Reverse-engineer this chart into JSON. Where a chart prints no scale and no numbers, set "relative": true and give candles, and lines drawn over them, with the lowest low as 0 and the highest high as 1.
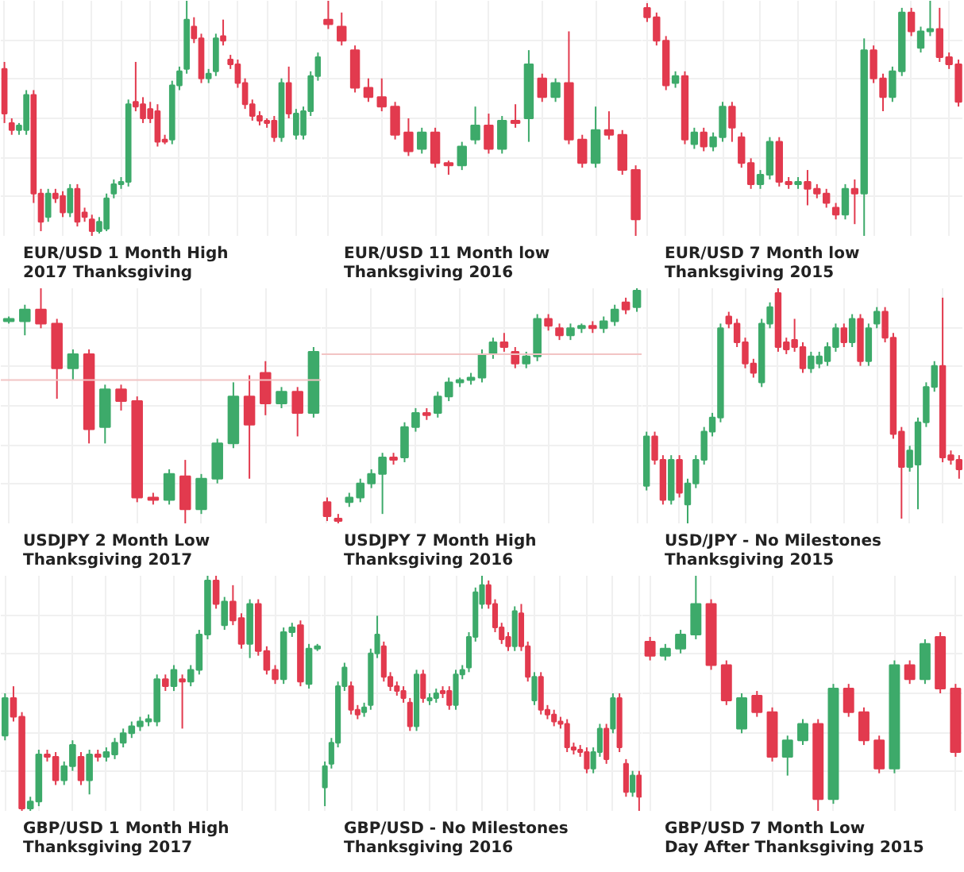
{
  "chart_data": [
    {
      "type": "candlestick",
      "relative": true,
      "grid": true,
      "annotations": [
        "EUR/USD 1 Month High\n2017 Thanksgiving"
      ],
      "categories": [
        null,
        null,
        null,
        null,
        null,
        null,
        null,
        null,
        null,
        null,
        null,
        null,
        null,
        null,
        null,
        null,
        null,
        null,
        null,
        null,
        null,
        null,
        null,
        null,
        null,
        null,
        null,
        null,
        null,
        null,
        null,
        null,
        null,
        null,
        null,
        null,
        null,
        null,
        null,
        null,
        null,
        null,
        null,
        null
      ],
      "ohlc": [
        [
          0.71,
          0.74,
          0.48,
          0.52
        ],
        [
          0.48,
          0.5,
          0.43,
          0.45
        ],
        [
          0.45,
          0.48,
          0.43,
          0.47
        ],
        [
          0.45,
          0.62,
          0.43,
          0.6
        ],
        [
          0.6,
          0.62,
          0.14,
          0.18
        ],
        [
          0.18,
          0.2,
          0.02,
          0.06
        ],
        [
          0.08,
          0.2,
          0.06,
          0.18
        ],
        [
          0.18,
          0.2,
          0.14,
          0.16
        ],
        [
          0.17,
          0.19,
          0.08,
          0.1
        ],
        [
          0.1,
          0.22,
          0.08,
          0.2
        ],
        [
          0.2,
          0.22,
          0.04,
          0.06
        ],
        [
          0.1,
          0.12,
          0.06,
          0.08
        ],
        [
          0.07,
          0.09,
          0.0,
          0.02
        ],
        [
          0.02,
          0.08,
          0.01,
          0.06
        ],
        [
          0.03,
          0.18,
          0.02,
          0.16
        ],
        [
          0.18,
          0.24,
          0.16,
          0.22
        ],
        [
          0.22,
          0.25,
          0.2,
          0.23
        ],
        [
          0.23,
          0.58,
          0.21,
          0.56
        ],
        [
          0.57,
          0.74,
          0.53,
          0.55
        ],
        [
          0.56,
          0.59,
          0.48,
          0.5
        ],
        [
          0.54,
          0.57,
          0.48,
          0.5
        ],
        [
          0.53,
          0.56,
          0.38,
          0.4
        ],
        [
          0.41,
          0.43,
          0.39,
          0.4
        ],
        [
          0.41,
          0.66,
          0.39,
          0.64
        ],
        [
          0.64,
          0.72,
          0.62,
          0.7
        ],
        [
          0.71,
          1.0,
          0.69,
          0.92
        ],
        [
          0.89,
          0.93,
          0.82,
          0.84
        ],
        [
          0.84,
          0.86,
          0.65,
          0.67
        ],
        [
          0.67,
          0.71,
          0.65,
          0.69
        ],
        [
          0.7,
          0.86,
          0.68,
          0.84
        ],
        [
          0.85,
          0.92,
          0.81,
          0.83
        ],
        [
          0.75,
          0.77,
          0.71,
          0.73
        ],
        [
          0.73,
          0.75,
          0.63,
          0.65
        ],
        [
          0.65,
          0.67,
          0.54,
          0.56
        ],
        [
          0.56,
          0.58,
          0.49,
          0.51
        ],
        [
          0.51,
          0.53,
          0.47,
          0.49
        ],
        [
          0.49,
          0.5,
          0.46,
          0.48
        ],
        [
          0.49,
          0.51,
          0.4,
          0.42
        ],
        [
          0.42,
          0.67,
          0.4,
          0.65
        ],
        [
          0.65,
          0.72,
          0.5,
          0.52
        ],
        [
          0.43,
          0.54,
          0.41,
          0.52
        ],
        [
          0.43,
          0.55,
          0.41,
          0.53
        ],
        [
          0.53,
          0.7,
          0.51,
          0.68
        ],
        [
          0.68,
          0.78,
          0.66,
          0.76
        ]
      ]
    },
    {
      "type": "candlestick",
      "relative": true,
      "grid": true,
      "annotations": [
        "EUR/USD 11 Month low\nThanksgiving 2016"
      ],
      "categories": [
        null,
        null,
        null,
        null,
        null,
        null,
        null,
        null,
        null,
        null,
        null,
        null,
        null,
        null,
        null,
        null,
        null,
        null,
        null,
        null,
        null,
        null,
        null,
        null
      ],
      "ohlc": [
        [
          0.92,
          1.0,
          0.88,
          0.9
        ],
        [
          0.89,
          0.95,
          0.81,
          0.83
        ],
        [
          0.79,
          0.81,
          0.61,
          0.63
        ],
        [
          0.63,
          0.67,
          0.57,
          0.59
        ],
        [
          0.59,
          0.67,
          0.53,
          0.55
        ],
        [
          0.55,
          0.57,
          0.41,
          0.43
        ],
        [
          0.44,
          0.5,
          0.34,
          0.36
        ],
        [
          0.37,
          0.46,
          0.35,
          0.44
        ],
        [
          0.44,
          0.46,
          0.29,
          0.31
        ],
        [
          0.31,
          0.32,
          0.26,
          0.3
        ],
        [
          0.3,
          0.4,
          0.28,
          0.38
        ],
        [
          0.41,
          0.55,
          0.39,
          0.47
        ],
        [
          0.47,
          0.52,
          0.35,
          0.37
        ],
        [
          0.37,
          0.51,
          0.35,
          0.49
        ],
        [
          0.49,
          0.56,
          0.46,
          0.48
        ],
        [
          0.5,
          0.79,
          0.4,
          0.73
        ],
        [
          0.67,
          0.69,
          0.57,
          0.59
        ],
        [
          0.59,
          0.67,
          0.57,
          0.65
        ],
        [
          0.65,
          0.87,
          0.39,
          0.41
        ],
        [
          0.41,
          0.43,
          0.29,
          0.31
        ],
        [
          0.31,
          0.55,
          0.29,
          0.45
        ],
        [
          0.45,
          0.53,
          0.41,
          0.43
        ],
        [
          0.43,
          0.45,
          0.26,
          0.28
        ],
        [
          0.28,
          0.3,
          0.0,
          0.07
        ]
      ]
    },
    {
      "type": "candlestick",
      "relative": true,
      "grid": true,
      "annotations": [
        "EUR/USD 7 Month low\nThanksgiving 2015"
      ],
      "categories": [
        null,
        null,
        null,
        null,
        null,
        null,
        null,
        null,
        null,
        null,
        null,
        null,
        null,
        null,
        null,
        null,
        null,
        null,
        null,
        null,
        null,
        null,
        null,
        null,
        null,
        null,
        null,
        null,
        null,
        null,
        null,
        null,
        null,
        null
      ],
      "ohlc": [
        [
          0.97,
          0.99,
          0.91,
          0.93
        ],
        [
          0.93,
          0.95,
          0.81,
          0.83
        ],
        [
          0.83,
          0.85,
          0.62,
          0.64
        ],
        [
          0.65,
          0.7,
          0.63,
          0.68
        ],
        [
          0.68,
          0.7,
          0.39,
          0.41
        ],
        [
          0.39,
          0.46,
          0.37,
          0.44
        ],
        [
          0.44,
          0.46,
          0.36,
          0.38
        ],
        [
          0.38,
          0.44,
          0.36,
          0.42
        ],
        [
          0.42,
          0.57,
          0.4,
          0.55
        ],
        [
          0.55,
          0.57,
          0.4,
          0.46
        ],
        [
          0.42,
          0.44,
          0.29,
          0.31
        ],
        [
          0.31,
          0.33,
          0.2,
          0.22
        ],
        [
          0.22,
          0.28,
          0.2,
          0.26
        ],
        [
          0.26,
          0.42,
          0.24,
          0.4
        ],
        [
          0.4,
          0.42,
          0.21,
          0.23
        ],
        [
          0.23,
          0.25,
          0.2,
          0.22
        ],
        [
          0.22,
          0.25,
          0.2,
          0.23
        ],
        [
          0.23,
          0.28,
          0.13,
          0.2
        ],
        [
          0.2,
          0.22,
          0.16,
          0.18
        ],
        [
          0.18,
          0.2,
          0.12,
          0.14
        ],
        [
          0.12,
          0.14,
          0.07,
          0.09
        ],
        [
          0.09,
          0.22,
          0.07,
          0.2
        ],
        [
          0.2,
          0.24,
          0.05,
          0.18
        ],
        [
          0.18,
          0.84,
          0.0,
          0.79
        ],
        [
          0.79,
          0.81,
          0.65,
          0.67
        ],
        [
          0.67,
          0.69,
          0.53,
          0.59
        ],
        [
          0.59,
          0.72,
          0.57,
          0.7
        ],
        [
          0.7,
          0.97,
          0.68,
          0.95
        ],
        [
          0.95,
          0.97,
          0.85,
          0.87
        ],
        [
          0.8,
          0.89,
          0.78,
          0.87
        ],
        [
          0.87,
          1.0,
          0.85,
          0.88
        ],
        [
          0.88,
          0.97,
          0.74,
          0.76
        ],
        [
          0.76,
          0.78,
          0.71,
          0.73
        ],
        [
          0.73,
          0.75,
          0.55,
          0.57
        ]
      ]
    },
    {
      "type": "candlestick",
      "relative": true,
      "grid": true,
      "annotations": [
        "USDJPY 2 Month Low\nThanksgiving 2017"
      ],
      "ref_lines": [
        {
          "axis": "y",
          "value": 0.61,
          "color": "#f2c4c4"
        }
      ],
      "categories": [
        null,
        null,
        null,
        null,
        null,
        null,
        null,
        null,
        null,
        null,
        null,
        null,
        null,
        null,
        null,
        null,
        null,
        null,
        null,
        null
      ],
      "ohlc": [
        [
          0.86,
          0.88,
          0.85,
          0.87
        ],
        [
          0.86,
          0.93,
          0.8,
          0.91
        ],
        [
          0.91,
          1.0,
          0.83,
          0.85
        ],
        [
          0.85,
          0.87,
          0.53,
          0.66
        ],
        [
          0.66,
          0.74,
          0.61,
          0.72
        ],
        [
          0.72,
          0.74,
          0.34,
          0.4
        ],
        [
          0.41,
          0.59,
          0.34,
          0.57
        ],
        [
          0.57,
          0.59,
          0.48,
          0.52
        ],
        [
          0.52,
          0.54,
          0.09,
          0.11
        ],
        [
          0.11,
          0.13,
          0.08,
          0.1
        ],
        [
          0.1,
          0.23,
          0.08,
          0.21
        ],
        [
          0.2,
          0.27,
          0.0,
          0.06
        ],
        [
          0.06,
          0.21,
          0.04,
          0.19
        ],
        [
          0.19,
          0.36,
          0.17,
          0.34
        ],
        [
          0.34,
          0.6,
          0.32,
          0.54
        ],
        [
          0.54,
          0.63,
          0.19,
          0.42
        ],
        [
          0.64,
          0.69,
          0.46,
          0.51
        ],
        [
          0.51,
          0.58,
          0.49,
          0.56
        ],
        [
          0.56,
          0.58,
          0.37,
          0.47
        ],
        [
          0.47,
          0.75,
          0.45,
          0.73
        ]
      ]
    },
    {
      "type": "candlestick",
      "relative": true,
      "grid": true,
      "annotations": [
        "USDJPY 7 Month High\nThanksgiving 2016"
      ],
      "ref_lines": [
        {
          "axis": "y",
          "value": 0.72,
          "color": "#f2c4c4"
        }
      ],
      "categories": [
        null,
        null,
        null,
        null,
        null,
        null,
        null,
        null,
        null,
        null,
        null,
        null,
        null,
        null,
        null,
        null,
        null,
        null,
        null,
        null,
        null,
        null,
        null,
        null,
        null,
        null,
        null,
        null,
        null
      ],
      "ohlc": [
        [
          0.09,
          0.11,
          0.01,
          0.03
        ],
        [
          0.02,
          0.04,
          0.0,
          0.01
        ],
        [
          0.09,
          0.13,
          0.07,
          0.11
        ],
        [
          0.11,
          0.19,
          0.09,
          0.17
        ],
        [
          0.17,
          0.23,
          0.15,
          0.21
        ],
        [
          0.21,
          0.3,
          0.04,
          0.28
        ],
        [
          0.28,
          0.3,
          0.25,
          0.27
        ],
        [
          0.28,
          0.43,
          0.26,
          0.41
        ],
        [
          0.41,
          0.49,
          0.39,
          0.47
        ],
        [
          0.47,
          0.49,
          0.44,
          0.46
        ],
        [
          0.47,
          0.56,
          0.45,
          0.54
        ],
        [
          0.54,
          0.62,
          0.52,
          0.6
        ],
        [
          0.6,
          0.62,
          0.58,
          0.61
        ],
        [
          0.61,
          0.64,
          0.59,
          0.62
        ],
        [
          0.62,
          0.74,
          0.6,
          0.72
        ],
        [
          0.72,
          0.79,
          0.7,
          0.77
        ],
        [
          0.77,
          0.81,
          0.73,
          0.75
        ],
        [
          0.73,
          0.75,
          0.66,
          0.68
        ],
        [
          0.68,
          0.73,
          0.66,
          0.71
        ],
        [
          0.71,
          0.89,
          0.69,
          0.87
        ],
        [
          0.87,
          0.89,
          0.82,
          0.84
        ],
        [
          0.83,
          0.85,
          0.78,
          0.8
        ],
        [
          0.8,
          0.85,
          0.78,
          0.83
        ],
        [
          0.83,
          0.85,
          0.81,
          0.84
        ],
        [
          0.84,
          0.86,
          0.81,
          0.83
        ],
        [
          0.83,
          0.88,
          0.81,
          0.86
        ],
        [
          0.86,
          0.93,
          0.84,
          0.91
        ],
        [
          0.94,
          0.96,
          0.89,
          0.91
        ],
        [
          0.92,
          1.0,
          0.9,
          0.99
        ]
      ]
    },
    {
      "type": "candlestick",
      "relative": true,
      "grid": true,
      "annotations": [
        "USD/JPY - No Milestones\nThanksgiving 2015"
      ],
      "categories": [
        null,
        null,
        null,
        null,
        null,
        null,
        null,
        null,
        null,
        null,
        null,
        null,
        null,
        null,
        null,
        null,
        null,
        null,
        null,
        null,
        null,
        null,
        null,
        null,
        null,
        null,
        null,
        null,
        null,
        null,
        null,
        null,
        null,
        null,
        null,
        null,
        null,
        null,
        null
      ],
      "ohlc": [
        [
          0.16,
          0.39,
          0.14,
          0.37
        ],
        [
          0.37,
          0.39,
          0.25,
          0.27
        ],
        [
          0.27,
          0.29,
          0.08,
          0.1
        ],
        [
          0.1,
          0.29,
          0.08,
          0.27
        ],
        [
          0.27,
          0.29,
          0.11,
          0.13
        ],
        [
          0.08,
          0.19,
          0.0,
          0.17
        ],
        [
          0.17,
          0.29,
          0.15,
          0.27
        ],
        [
          0.27,
          0.41,
          0.25,
          0.39
        ],
        [
          0.39,
          0.47,
          0.37,
          0.45
        ],
        [
          0.45,
          0.85,
          0.43,
          0.83
        ],
        [
          0.88,
          0.9,
          0.83,
          0.85
        ],
        [
          0.85,
          0.87,
          0.75,
          0.77
        ],
        [
          0.77,
          0.79,
          0.66,
          0.68
        ],
        [
          0.68,
          0.7,
          0.62,
          0.64
        ],
        [
          0.6,
          0.87,
          0.58,
          0.85
        ],
        [
          0.85,
          0.94,
          0.83,
          0.92
        ],
        [
          0.98,
          1.0,
          0.73,
          0.75
        ],
        [
          0.77,
          0.79,
          0.72,
          0.74
        ],
        [
          0.78,
          0.87,
          0.73,
          0.75
        ],
        [
          0.75,
          0.77,
          0.64,
          0.66
        ],
        [
          0.66,
          0.73,
          0.64,
          0.71
        ],
        [
          0.68,
          0.73,
          0.66,
          0.71
        ],
        [
          0.69,
          0.77,
          0.67,
          0.75
        ],
        [
          0.75,
          0.85,
          0.73,
          0.83
        ],
        [
          0.83,
          0.85,
          0.75,
          0.77
        ],
        [
          0.77,
          0.89,
          0.75,
          0.87
        ],
        [
          0.87,
          0.89,
          0.67,
          0.69
        ],
        [
          0.69,
          0.85,
          0.67,
          0.83
        ],
        [
          0.85,
          0.92,
          0.83,
          0.9
        ],
        [
          0.9,
          0.92,
          0.77,
          0.79
        ],
        [
          0.79,
          0.81,
          0.36,
          0.38
        ],
        [
          0.39,
          0.41,
          0.02,
          0.24
        ],
        [
          0.24,
          0.33,
          0.22,
          0.31
        ],
        [
          0.25,
          0.45,
          0.06,
          0.43
        ],
        [
          0.43,
          0.6,
          0.41,
          0.58
        ],
        [
          0.58,
          0.69,
          0.56,
          0.67
        ],
        [
          0.67,
          0.96,
          0.26,
          0.28
        ],
        [
          0.29,
          0.31,
          0.25,
          0.27
        ],
        [
          0.27,
          0.29,
          0.19,
          0.23
        ]
      ]
    },
    {
      "type": "candlestick",
      "relative": true,
      "grid": true,
      "annotations": [
        "GBP/USD 1 Month High\nThanksgiving 2017"
      ],
      "categories": [
        null,
        null,
        null,
        null,
        null,
        null,
        null,
        null,
        null,
        null,
        null,
        null,
        null,
        null,
        null,
        null,
        null,
        null,
        null,
        null,
        null,
        null,
        null,
        null,
        null,
        null,
        null,
        null,
        null,
        null,
        null,
        null,
        null,
        null,
        null,
        null,
        null,
        null
      ],
      "ohlc": [
        [
          0.32,
          0.5,
          0.3,
          0.48
        ],
        [
          0.48,
          0.53,
          0.38,
          0.4
        ],
        [
          0.4,
          0.42,
          0.0,
          0.01
        ],
        [
          0.01,
          0.06,
          0.0,
          0.04
        ],
        [
          0.04,
          0.26,
          0.02,
          0.24
        ],
        [
          0.24,
          0.26,
          0.21,
          0.23
        ],
        [
          0.23,
          0.25,
          0.11,
          0.13
        ],
        [
          0.13,
          0.21,
          0.11,
          0.19
        ],
        [
          0.19,
          0.3,
          0.17,
          0.28
        ],
        [
          0.23,
          0.25,
          0.11,
          0.13
        ],
        [
          0.13,
          0.26,
          0.07,
          0.24
        ],
        [
          0.24,
          0.26,
          0.21,
          0.23
        ],
        [
          0.23,
          0.27,
          0.21,
          0.25
        ],
        [
          0.24,
          0.31,
          0.22,
          0.29
        ],
        [
          0.29,
          0.35,
          0.27,
          0.33
        ],
        [
          0.33,
          0.38,
          0.31,
          0.36
        ],
        [
          0.36,
          0.4,
          0.34,
          0.38
        ],
        [
          0.38,
          0.41,
          0.36,
          0.39
        ],
        [
          0.38,
          0.58,
          0.36,
          0.56
        ],
        [
          0.56,
          0.58,
          0.51,
          0.53
        ],
        [
          0.53,
          0.62,
          0.51,
          0.6
        ],
        [
          0.56,
          0.58,
          0.35,
          0.55
        ],
        [
          0.55,
          0.62,
          0.53,
          0.6
        ],
        [
          0.6,
          0.77,
          0.58,
          0.75
        ],
        [
          0.75,
          1.0,
          0.73,
          0.98
        ],
        [
          0.98,
          1.0,
          0.86,
          0.88
        ],
        [
          0.79,
          0.91,
          0.77,
          0.89
        ],
        [
          0.89,
          0.96,
          0.79,
          0.81
        ],
        [
          0.82,
          0.84,
          0.69,
          0.71
        ],
        [
          0.71,
          0.9,
          0.65,
          0.88
        ],
        [
          0.88,
          0.9,
          0.66,
          0.68
        ],
        [
          0.68,
          0.7,
          0.58,
          0.6
        ],
        [
          0.6,
          0.62,
          0.54,
          0.56
        ],
        [
          0.56,
          0.78,
          0.54,
          0.76
        ],
        [
          0.76,
          0.8,
          0.74,
          0.78
        ],
        [
          0.79,
          0.81,
          0.53,
          0.55
        ],
        [
          0.54,
          0.71,
          0.52,
          0.69
        ],
        [
          0.69,
          0.71,
          0.68,
          0.7
        ]
      ]
    },
    {
      "type": "candlestick",
      "relative": true,
      "grid": true,
      "annotations": [
        "GBP/USD - No Milestones\nThanksgiving 2016"
      ],
      "categories": [
        null,
        null,
        null,
        null,
        null,
        null,
        null,
        null,
        null,
        null,
        null,
        null,
        null,
        null,
        null,
        null,
        null,
        null,
        null,
        null,
        null,
        null,
        null,
        null,
        null,
        null,
        null,
        null,
        null,
        null,
        null,
        null,
        null,
        null,
        null,
        null,
        null,
        null,
        null,
        null,
        null,
        null,
        null,
        null,
        null,
        null,
        null,
        null,
        null
      ],
      "ohlc": [
        [
          0.1,
          0.21,
          0.02,
          0.19
        ],
        [
          0.2,
          0.31,
          0.18,
          0.29
        ],
        [
          0.29,
          0.55,
          0.27,
          0.53
        ],
        [
          0.53,
          0.63,
          0.51,
          0.61
        ],
        [
          0.53,
          0.55,
          0.41,
          0.43
        ],
        [
          0.43,
          0.45,
          0.39,
          0.41
        ],
        [
          0.42,
          0.46,
          0.4,
          0.44
        ],
        [
          0.45,
          0.69,
          0.43,
          0.67
        ],
        [
          0.67,
          0.83,
          0.65,
          0.75
        ],
        [
          0.7,
          0.72,
          0.55,
          0.57
        ],
        [
          0.57,
          0.59,
          0.51,
          0.53
        ],
        [
          0.53,
          0.55,
          0.49,
          0.51
        ],
        [
          0.51,
          0.53,
          0.46,
          0.48
        ],
        [
          0.46,
          0.48,
          0.34,
          0.36
        ],
        [
          0.36,
          0.6,
          0.34,
          0.58
        ],
        [
          0.58,
          0.6,
          0.46,
          0.48
        ],
        [
          0.47,
          0.5,
          0.45,
          0.48
        ],
        [
          0.48,
          0.52,
          0.46,
          0.5
        ],
        [
          0.51,
          0.53,
          0.48,
          0.5
        ],
        [
          0.51,
          0.53,
          0.43,
          0.45
        ],
        [
          0.45,
          0.6,
          0.43,
          0.58
        ],
        [
          0.58,
          0.62,
          0.56,
          0.6
        ],
        [
          0.61,
          0.76,
          0.59,
          0.74
        ],
        [
          0.74,
          0.95,
          0.72,
          0.93
        ],
        [
          0.88,
          1.0,
          0.86,
          0.96
        ],
        [
          0.96,
          0.98,
          0.86,
          0.88
        ],
        [
          0.88,
          0.9,
          0.76,
          0.78
        ],
        [
          0.78,
          0.8,
          0.71,
          0.73
        ],
        [
          0.74,
          0.76,
          0.68,
          0.7
        ],
        [
          0.7,
          0.87,
          0.68,
          0.85
        ],
        [
          0.84,
          0.88,
          0.68,
          0.7
        ],
        [
          0.7,
          0.72,
          0.55,
          0.57
        ],
        [
          0.47,
          0.59,
          0.45,
          0.57
        ],
        [
          0.57,
          0.59,
          0.41,
          0.43
        ],
        [
          0.43,
          0.45,
          0.39,
          0.41
        ],
        [
          0.41,
          0.43,
          0.36,
          0.38
        ],
        [
          0.38,
          0.4,
          0.35,
          0.37
        ],
        [
          0.37,
          0.39,
          0.25,
          0.27
        ],
        [
          0.27,
          0.29,
          0.24,
          0.26
        ],
        [
          0.26,
          0.28,
          0.23,
          0.25
        ],
        [
          0.25,
          0.27,
          0.16,
          0.18
        ],
        [
          0.18,
          0.27,
          0.16,
          0.25
        ],
        [
          0.25,
          0.37,
          0.23,
          0.35
        ],
        [
          0.35,
          0.37,
          0.2,
          0.22
        ],
        [
          0.35,
          0.5,
          0.33,
          0.48
        ],
        [
          0.48,
          0.5,
          0.25,
          0.27
        ],
        [
          0.2,
          0.22,
          0.06,
          0.08
        ],
        [
          0.08,
          0.17,
          0.06,
          0.15
        ],
        [
          0.15,
          0.17,
          0.0,
          0.06
        ]
      ]
    },
    {
      "type": "candlestick",
      "relative": true,
      "grid": true,
      "annotations": [
        "GBP/USD 7 Month Low\nDay After Thanksgiving 2015"
      ],
      "categories": [
        null,
        null,
        null,
        null,
        null,
        null,
        null,
        null,
        null,
        null,
        null,
        null,
        null,
        null,
        null,
        null,
        null,
        null,
        null,
        null,
        null
      ],
      "ohlc": [
        [
          0.72,
          0.74,
          0.64,
          0.66
        ],
        [
          0.66,
          0.71,
          0.64,
          0.69
        ],
        [
          0.69,
          0.77,
          0.67,
          0.75
        ],
        [
          0.75,
          1.0,
          0.73,
          0.88
        ],
        [
          0.88,
          0.9,
          0.6,
          0.62
        ],
        [
          0.62,
          0.64,
          0.45,
          0.47
        ],
        [
          0.35,
          0.5,
          0.33,
          0.48
        ],
        [
          0.49,
          0.51,
          0.4,
          0.42
        ],
        [
          0.42,
          0.44,
          0.21,
          0.23
        ],
        [
          0.23,
          0.32,
          0.15,
          0.3
        ],
        [
          0.3,
          0.39,
          0.28,
          0.37
        ],
        [
          0.37,
          0.39,
          0.0,
          0.05
        ],
        [
          0.05,
          0.54,
          0.03,
          0.52
        ],
        [
          0.52,
          0.54,
          0.4,
          0.42
        ],
        [
          0.42,
          0.44,
          0.28,
          0.3
        ],
        [
          0.3,
          0.32,
          0.16,
          0.18
        ],
        [
          0.18,
          0.64,
          0.16,
          0.62
        ],
        [
          0.62,
          0.64,
          0.54,
          0.56
        ],
        [
          0.56,
          0.73,
          0.54,
          0.71
        ],
        [
          0.74,
          0.76,
          0.5,
          0.52
        ],
        [
          0.52,
          0.54,
          0.23,
          0.25
        ]
      ]
    }
  ]
}
